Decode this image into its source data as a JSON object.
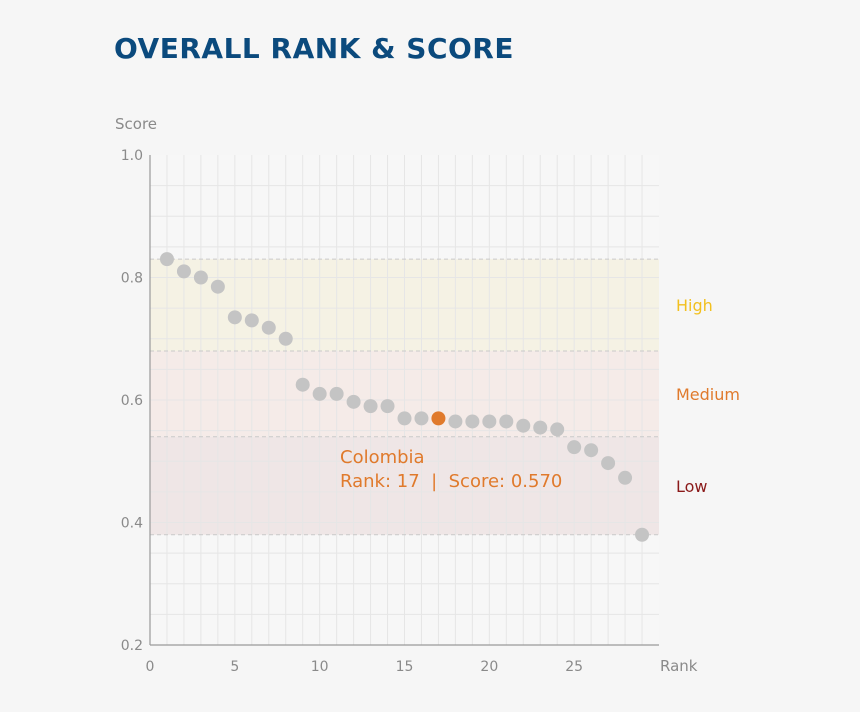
{
  "chart_data": {
    "type": "scatter",
    "title": "OVERALL RANK & SCORE",
    "xlabel": "Rank",
    "ylabel": "Score",
    "xlim": [
      0,
      30
    ],
    "ylim": [
      0.2,
      1.0
    ],
    "x_ticks": [
      0,
      5,
      10,
      15,
      20,
      25
    ],
    "y_ticks": [
      "1.0",
      "0.8",
      "0.6",
      "0.4",
      "0.2"
    ],
    "grid": true,
    "bands": [
      {
        "label": "High",
        "from": 0.68,
        "to": 0.83,
        "color": "#f5f2e4",
        "label_color": "#f2c01f"
      },
      {
        "label": "Medium",
        "from": 0.54,
        "to": 0.68,
        "color": "#f5ebe8",
        "label_color": "#e07a2c"
      },
      {
        "label": "Low",
        "from": 0.38,
        "to": 0.54,
        "color": "#efe6e6",
        "label_color": "#8b1a1a"
      }
    ],
    "points": [
      {
        "x": 1,
        "y": 0.83
      },
      {
        "x": 2,
        "y": 0.81
      },
      {
        "x": 3,
        "y": 0.8
      },
      {
        "x": 4,
        "y": 0.785
      },
      {
        "x": 5,
        "y": 0.735
      },
      {
        "x": 6,
        "y": 0.73
      },
      {
        "x": 7,
        "y": 0.718
      },
      {
        "x": 8,
        "y": 0.7
      },
      {
        "x": 9,
        "y": 0.625
      },
      {
        "x": 10,
        "y": 0.61
      },
      {
        "x": 11,
        "y": 0.61
      },
      {
        "x": 12,
        "y": 0.597
      },
      {
        "x": 13,
        "y": 0.59
      },
      {
        "x": 14,
        "y": 0.59
      },
      {
        "x": 15,
        "y": 0.57
      },
      {
        "x": 16,
        "y": 0.57
      },
      {
        "x": 17,
        "y": 0.57
      },
      {
        "x": 18,
        "y": 0.565
      },
      {
        "x": 19,
        "y": 0.565
      },
      {
        "x": 20,
        "y": 0.565
      },
      {
        "x": 21,
        "y": 0.565
      },
      {
        "x": 22,
        "y": 0.558
      },
      {
        "x": 23,
        "y": 0.555
      },
      {
        "x": 24,
        "y": 0.552
      },
      {
        "x": 25,
        "y": 0.523
      },
      {
        "x": 26,
        "y": 0.518
      },
      {
        "x": 27,
        "y": 0.497
      },
      {
        "x": 28,
        "y": 0.473
      },
      {
        "x": 29,
        "y": 0.38
      }
    ],
    "highlight": {
      "x": 17,
      "y": 0.57,
      "name": "Colombia",
      "detail": "Rank: 17  |  Score: 0.570",
      "color": "#e07a2c"
    },
    "point_color": "#c4c4c4"
  }
}
